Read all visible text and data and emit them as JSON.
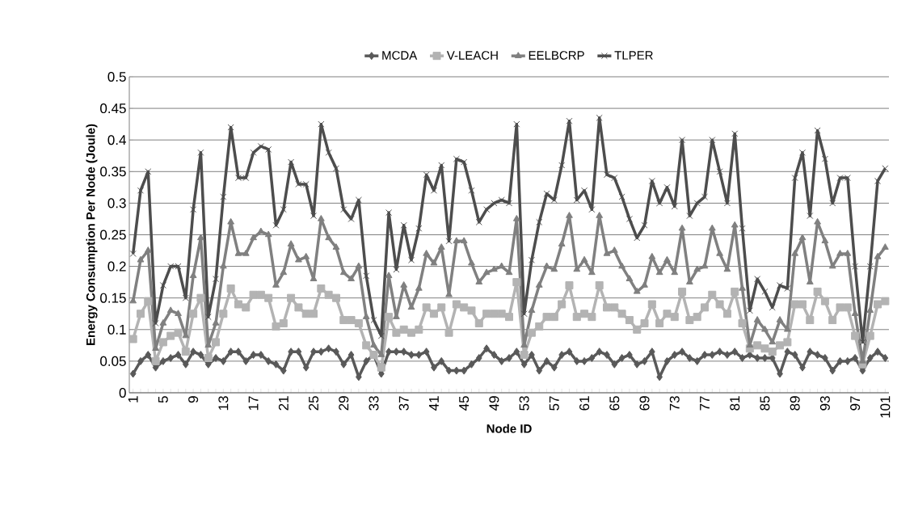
{
  "chart_data": {
    "type": "line",
    "xlabel": "Node ID",
    "ylabel": "Energy Consumption Per Node (Joule)",
    "categories": [
      "1",
      null,
      null,
      null,
      "5",
      null,
      null,
      null,
      "9",
      null,
      null,
      null,
      "13",
      null,
      null,
      null,
      "17",
      null,
      null,
      null,
      "21",
      null,
      null,
      null,
      "25",
      null,
      null,
      null,
      "29",
      null,
      null,
      null,
      "33",
      null,
      null,
      null,
      "37",
      null,
      null,
      null,
      "41",
      null,
      null,
      null,
      "45",
      null,
      null,
      null,
      "49",
      null,
      null,
      null,
      "53",
      null,
      null,
      null,
      "57",
      null,
      null,
      null,
      "61",
      null,
      null,
      null,
      "65",
      null,
      null,
      null,
      "69",
      null,
      null,
      null,
      "73",
      null,
      null,
      null,
      "77",
      null,
      null,
      null,
      "81",
      null,
      null,
      null,
      "85",
      null,
      null,
      null,
      "89",
      null,
      null,
      null,
      "93",
      null,
      null,
      null,
      "97",
      null,
      null,
      null,
      "101"
    ],
    "ylim": [
      0,
      0.5
    ],
    "yticks": [
      0,
      0.05,
      0.1,
      0.15,
      0.2,
      0.25,
      0.3,
      0.35,
      0.4,
      0.45,
      0.5
    ],
    "grid": "y",
    "legend": "top",
    "series": [
      {
        "name": "MCDA",
        "color": "#595959",
        "marker": "diamond",
        "values": [
          0.03,
          0.05,
          0.06,
          0.04,
          0.05,
          0.055,
          0.06,
          0.045,
          0.065,
          0.06,
          0.045,
          0.055,
          0.05,
          0.065,
          0.065,
          0.05,
          0.06,
          0.06,
          0.05,
          0.045,
          0.035,
          0.065,
          0.065,
          0.04,
          0.065,
          0.065,
          0.07,
          0.065,
          0.045,
          0.06,
          0.025,
          0.05,
          0.06,
          0.03,
          0.065,
          0.065,
          0.065,
          0.06,
          0.06,
          0.065,
          0.04,
          0.05,
          0.035,
          0.035,
          0.035,
          0.045,
          0.055,
          0.07,
          0.06,
          0.05,
          0.055,
          0.065,
          0.045,
          0.06,
          0.035,
          0.05,
          0.04,
          0.06,
          0.065,
          0.05,
          0.05,
          0.055,
          0.065,
          0.06,
          0.045,
          0.055,
          0.06,
          0.045,
          0.05,
          0.065,
          0.025,
          0.05,
          0.06,
          0.065,
          0.055,
          0.05,
          0.06,
          0.06,
          0.065,
          0.06,
          0.065,
          0.055,
          0.06,
          0.055,
          0.055,
          0.055,
          0.03,
          0.065,
          0.06,
          0.04,
          0.065,
          0.06,
          0.055,
          0.035,
          0.05,
          0.05,
          0.055,
          0.035,
          0.055,
          0.065,
          0.055
        ]
      },
      {
        "name": "V-LEACH",
        "color": "#b3b3b3",
        "marker": "square",
        "values": [
          0.085,
          0.125,
          0.145,
          0.05,
          0.08,
          0.09,
          0.095,
          0.065,
          0.125,
          0.15,
          0.055,
          0.08,
          0.125,
          0.165,
          0.14,
          0.135,
          0.155,
          0.155,
          0.15,
          0.105,
          0.11,
          0.15,
          0.135,
          0.125,
          0.125,
          0.165,
          0.155,
          0.15,
          0.115,
          0.115,
          0.11,
          0.075,
          0.06,
          0.04,
          0.12,
          0.095,
          0.1,
          0.095,
          0.1,
          0.135,
          0.125,
          0.135,
          0.095,
          0.14,
          0.135,
          0.13,
          0.11,
          0.125,
          0.125,
          0.125,
          0.12,
          0.175,
          0.06,
          0.095,
          0.105,
          0.12,
          0.12,
          0.14,
          0.17,
          0.12,
          0.125,
          0.12,
          0.17,
          0.135,
          0.135,
          0.125,
          0.115,
          0.1,
          0.11,
          0.14,
          0.11,
          0.125,
          0.12,
          0.16,
          0.115,
          0.12,
          0.135,
          0.155,
          0.14,
          0.125,
          0.16,
          0.11,
          0.07,
          0.075,
          0.07,
          0.065,
          0.075,
          0.08,
          0.14,
          0.14,
          0.115,
          0.16,
          0.145,
          0.115,
          0.135,
          0.135,
          0.09,
          0.045,
          0.09,
          0.14,
          0.145
        ]
      },
      {
        "name": "EELBCRP",
        "color": "#808080",
        "marker": "triangle",
        "values": [
          0.145,
          0.21,
          0.225,
          0.07,
          0.11,
          0.13,
          0.125,
          0.09,
          0.185,
          0.245,
          0.075,
          0.11,
          0.2,
          0.27,
          0.22,
          0.22,
          0.245,
          0.255,
          0.25,
          0.17,
          0.19,
          0.235,
          0.21,
          0.215,
          0.18,
          0.275,
          0.245,
          0.23,
          0.19,
          0.18,
          0.2,
          0.12,
          0.075,
          0.06,
          0.185,
          0.12,
          0.17,
          0.135,
          0.165,
          0.22,
          0.205,
          0.23,
          0.155,
          0.24,
          0.24,
          0.205,
          0.175,
          0.19,
          0.195,
          0.2,
          0.19,
          0.275,
          0.075,
          0.13,
          0.17,
          0.2,
          0.195,
          0.235,
          0.28,
          0.195,
          0.21,
          0.19,
          0.28,
          0.22,
          0.225,
          0.2,
          0.18,
          0.16,
          0.17,
          0.215,
          0.19,
          0.21,
          0.19,
          0.26,
          0.175,
          0.195,
          0.2,
          0.26,
          0.22,
          0.195,
          0.265,
          0.165,
          0.075,
          0.115,
          0.1,
          0.08,
          0.115,
          0.1,
          0.22,
          0.245,
          0.175,
          0.27,
          0.24,
          0.2,
          0.22,
          0.22,
          0.125,
          0.05,
          0.13,
          0.215,
          0.23
        ]
      },
      {
        "name": "TLPER",
        "color": "#4d4d4d",
        "marker": "cross",
        "values": [
          0.22,
          0.32,
          0.35,
          0.11,
          0.17,
          0.2,
          0.2,
          0.15,
          0.29,
          0.38,
          0.12,
          0.18,
          0.31,
          0.42,
          0.34,
          0.34,
          0.38,
          0.39,
          0.385,
          0.265,
          0.29,
          0.365,
          0.33,
          0.33,
          0.28,
          0.425,
          0.38,
          0.355,
          0.29,
          0.275,
          0.305,
          0.185,
          0.115,
          0.09,
          0.285,
          0.195,
          0.265,
          0.21,
          0.26,
          0.345,
          0.32,
          0.36,
          0.24,
          0.37,
          0.365,
          0.32,
          0.27,
          0.29,
          0.3,
          0.305,
          0.3,
          0.425,
          0.125,
          0.21,
          0.27,
          0.315,
          0.305,
          0.36,
          0.43,
          0.305,
          0.32,
          0.29,
          0.435,
          0.345,
          0.34,
          0.31,
          0.275,
          0.245,
          0.265,
          0.335,
          0.3,
          0.325,
          0.295,
          0.4,
          0.28,
          0.3,
          0.31,
          0.4,
          0.35,
          0.3,
          0.41,
          0.26,
          0.13,
          0.18,
          0.16,
          0.135,
          0.17,
          0.165,
          0.34,
          0.38,
          0.28,
          0.415,
          0.37,
          0.3,
          0.34,
          0.34,
          0.2,
          0.08,
          0.2,
          0.335,
          0.355
        ]
      }
    ]
  }
}
